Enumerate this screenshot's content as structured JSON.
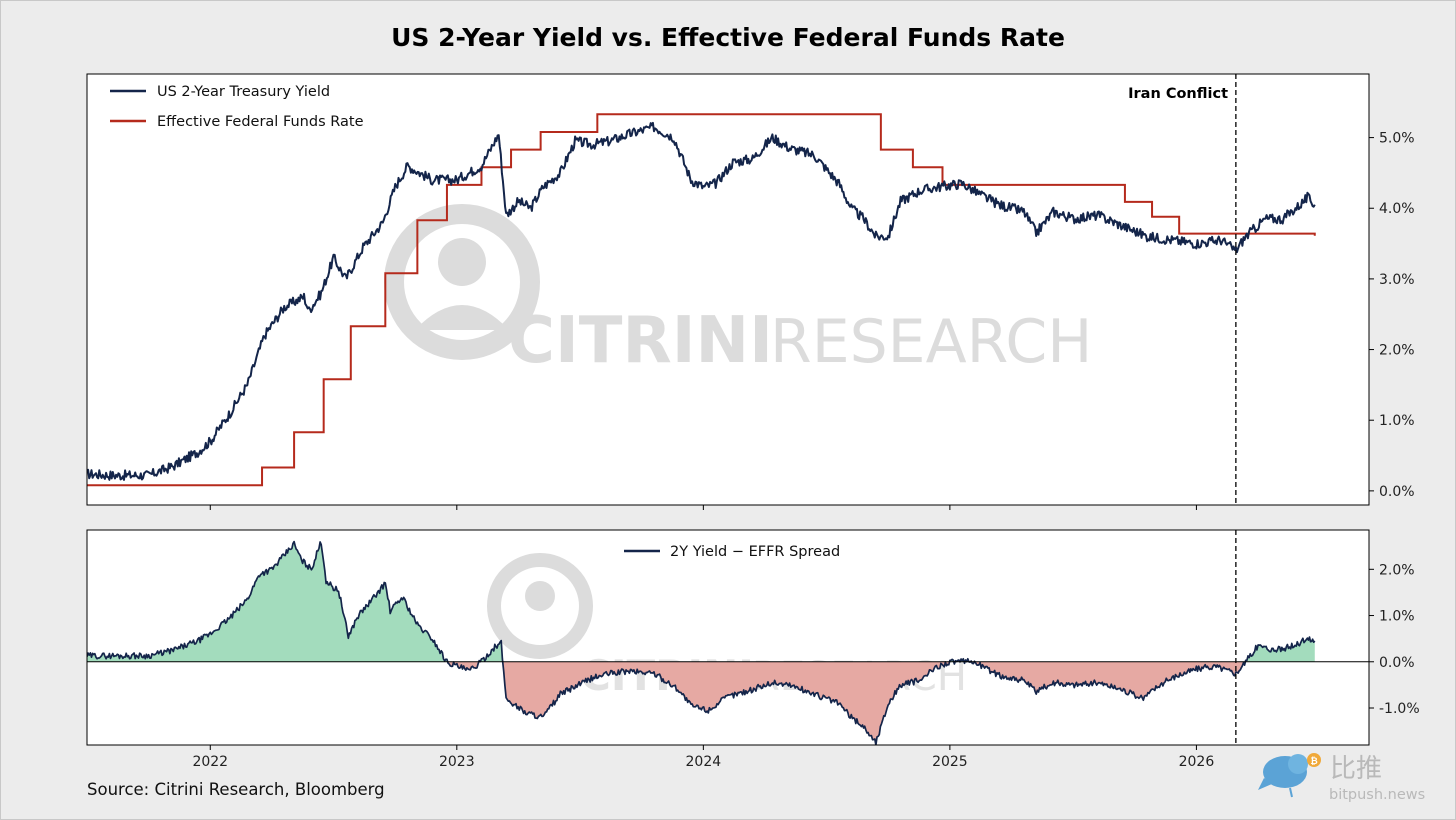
{
  "colors": {
    "yield": "#14254a",
    "effr": "#b52a1c",
    "spread_line": "#14254a",
    "spread_pos": "#a3dcbd",
    "spread_neg": "#e6a9a3",
    "watermark": "#d6d6d6",
    "brand_blue": "#5ba3d6",
    "brand_gold": "#f0a93a"
  },
  "source_text": "Source: Citrini Research, Bloomberg",
  "watermark": {
    "text_bold": "CITRINI",
    "text_light": "RESEARCH"
  },
  "branding": {
    "cn": "比推",
    "site": "bitpush.news",
    "icon": "bird-icon"
  },
  "chart_data": [
    {
      "type": "line",
      "title": "US 2-Year Yield vs. Effective Federal Funds Rate",
      "xlabel": "",
      "ylabel": "",
      "x_ticks": [
        "2022",
        "2023",
        "2024",
        "2025",
        "2026"
      ],
      "xlim": [
        2021.5,
        2026.7
      ],
      "ylim": [
        -0.2,
        5.9
      ],
      "y_ticks": [
        "0.0%",
        "1.0%",
        "2.0%",
        "3.0%",
        "4.0%",
        "5.0%"
      ],
      "y_tick_values": [
        0,
        1,
        2,
        3,
        4,
        5
      ],
      "legend_position": "top-left",
      "annotation": {
        "text": "Iran Conflict",
        "x": 2026.16
      },
      "series": [
        {
          "name": "US 2-Year Treasury Yield",
          "points": [
            [
              2021.5,
              0.24
            ],
            [
              2021.6,
              0.22
            ],
            [
              2021.75,
              0.22
            ],
            [
              2021.85,
              0.35
            ],
            [
              2021.95,
              0.55
            ],
            [
              2022.0,
              0.7
            ],
            [
              2022.08,
              1.1
            ],
            [
              2022.15,
              1.5
            ],
            [
              2022.22,
              2.2
            ],
            [
              2022.3,
              2.6
            ],
            [
              2022.38,
              2.75
            ],
            [
              2022.4,
              2.55
            ],
            [
              2022.45,
              2.8
            ],
            [
              2022.5,
              3.3
            ],
            [
              2022.55,
              3.0
            ],
            [
              2022.62,
              3.45
            ],
            [
              2022.7,
              3.8
            ],
            [
              2022.75,
              4.3
            ],
            [
              2022.8,
              4.6
            ],
            [
              2022.85,
              4.5
            ],
            [
              2022.9,
              4.4
            ],
            [
              2023.0,
              4.4
            ],
            [
              2023.1,
              4.6
            ],
            [
              2023.17,
              5.05
            ],
            [
              2023.2,
              3.9
            ],
            [
              2023.25,
              4.1
            ],
            [
              2023.3,
              4.0
            ],
            [
              2023.35,
              4.3
            ],
            [
              2023.42,
              4.5
            ],
            [
              2023.48,
              4.95
            ],
            [
              2023.55,
              4.9
            ],
            [
              2023.62,
              4.95
            ],
            [
              2023.7,
              5.05
            ],
            [
              2023.8,
              5.15
            ],
            [
              2023.88,
              5.0
            ],
            [
              2023.95,
              4.4
            ],
            [
              2024.0,
              4.3
            ],
            [
              2024.05,
              4.35
            ],
            [
              2024.12,
              4.65
            ],
            [
              2024.2,
              4.7
            ],
            [
              2024.28,
              5.0
            ],
            [
              2024.35,
              4.85
            ],
            [
              2024.45,
              4.75
            ],
            [
              2024.55,
              4.35
            ],
            [
              2024.6,
              4.0
            ],
            [
              2024.65,
              3.85
            ],
            [
              2024.7,
              3.6
            ],
            [
              2024.75,
              3.6
            ],
            [
              2024.8,
              4.1
            ],
            [
              2024.88,
              4.25
            ],
            [
              2024.95,
              4.3
            ],
            [
              2025.05,
              4.35
            ],
            [
              2025.12,
              4.2
            ],
            [
              2025.2,
              4.05
            ],
            [
              2025.3,
              3.95
            ],
            [
              2025.35,
              3.65
            ],
            [
              2025.42,
              3.95
            ],
            [
              2025.5,
              3.85
            ],
            [
              2025.6,
              3.9
            ],
            [
              2025.7,
              3.75
            ],
            [
              2025.8,
              3.6
            ],
            [
              2025.9,
              3.55
            ],
            [
              2026.0,
              3.5
            ],
            [
              2026.1,
              3.55
            ],
            [
              2026.16,
              3.4
            ],
            [
              2026.2,
              3.6
            ],
            [
              2026.28,
              3.85
            ],
            [
              2026.35,
              3.85
            ],
            [
              2026.42,
              4.05
            ],
            [
              2026.45,
              4.15
            ],
            [
              2026.48,
              4.05
            ]
          ]
        },
        {
          "name": "Effective Federal Funds Rate",
          "steps": [
            [
              2021.5,
              0.08
            ],
            [
              2022.21,
              0.33
            ],
            [
              2022.34,
              0.83
            ],
            [
              2022.46,
              1.58
            ],
            [
              2022.57,
              2.33
            ],
            [
              2022.71,
              3.08
            ],
            [
              2022.84,
              3.83
            ],
            [
              2022.96,
              4.33
            ],
            [
              2023.1,
              4.58
            ],
            [
              2023.22,
              4.83
            ],
            [
              2023.34,
              5.08
            ],
            [
              2023.57,
              5.33
            ],
            [
              2024.72,
              4.83
            ],
            [
              2024.85,
              4.58
            ],
            [
              2024.97,
              4.33
            ],
            [
              2025.71,
              4.09
            ],
            [
              2025.82,
              3.88
            ],
            [
              2025.93,
              3.64
            ],
            [
              2026.48,
              3.61
            ]
          ]
        }
      ]
    },
    {
      "type": "area",
      "title": "",
      "xlabel": "",
      "ylabel": "",
      "xlim": [
        2021.5,
        2026.7
      ],
      "ylim": [
        -1.8,
        2.85
      ],
      "y_ticks": [
        "2.0%",
        "1.0%",
        "0.0%",
        "-1.0%"
      ],
      "y_tick_values": [
        2,
        1,
        0,
        -1
      ],
      "legend_position": "top-center",
      "series": [
        {
          "name": "2Y Yield − EFFR Spread",
          "points": [
            [
              2021.5,
              0.13
            ],
            [
              2021.75,
              0.13
            ],
            [
              2021.85,
              0.25
            ],
            [
              2021.95,
              0.45
            ],
            [
              2022.0,
              0.6
            ],
            [
              2022.08,
              0.95
            ],
            [
              2022.15,
              1.35
            ],
            [
              2022.2,
              1.9
            ],
            [
              2022.25,
              2.0
            ],
            [
              2022.3,
              2.3
            ],
            [
              2022.34,
              2.55
            ],
            [
              2022.37,
              2.2
            ],
            [
              2022.41,
              2.0
            ],
            [
              2022.45,
              2.6
            ],
            [
              2022.47,
              1.75
            ],
            [
              2022.5,
              1.6
            ],
            [
              2022.52,
              1.55
            ],
            [
              2022.56,
              0.55
            ],
            [
              2022.6,
              1.0
            ],
            [
              2022.65,
              1.3
            ],
            [
              2022.71,
              1.7
            ],
            [
              2022.73,
              1.1
            ],
            [
              2022.78,
              1.4
            ],
            [
              2022.84,
              0.8
            ],
            [
              2022.9,
              0.5
            ],
            [
              2022.96,
              0.0
            ],
            [
              2023.05,
              -0.2
            ],
            [
              2023.1,
              0.0
            ],
            [
              2023.15,
              0.3
            ],
            [
              2023.18,
              0.4
            ],
            [
              2023.2,
              -0.8
            ],
            [
              2023.28,
              -1.1
            ],
            [
              2023.35,
              -1.2
            ],
            [
              2023.42,
              -0.7
            ],
            [
              2023.55,
              -0.35
            ],
            [
              2023.62,
              -0.25
            ],
            [
              2023.7,
              -0.2
            ],
            [
              2023.8,
              -0.25
            ],
            [
              2023.9,
              -0.6
            ],
            [
              2023.95,
              -0.95
            ],
            [
              2024.02,
              -1.05
            ],
            [
              2024.1,
              -0.75
            ],
            [
              2024.2,
              -0.6
            ],
            [
              2024.28,
              -0.45
            ],
            [
              2024.35,
              -0.5
            ],
            [
              2024.45,
              -0.7
            ],
            [
              2024.55,
              -0.9
            ],
            [
              2024.6,
              -1.2
            ],
            [
              2024.65,
              -1.4
            ],
            [
              2024.7,
              -1.75
            ],
            [
              2024.75,
              -0.9
            ],
            [
              2024.8,
              -0.5
            ],
            [
              2024.88,
              -0.4
            ],
            [
              2024.95,
              -0.1
            ],
            [
              2025.0,
              0.0
            ],
            [
              2025.1,
              0.0
            ],
            [
              2025.2,
              -0.3
            ],
            [
              2025.3,
              -0.4
            ],
            [
              2025.35,
              -0.65
            ],
            [
              2025.42,
              -0.45
            ],
            [
              2025.5,
              -0.5
            ],
            [
              2025.6,
              -0.45
            ],
            [
              2025.7,
              -0.6
            ],
            [
              2025.78,
              -0.8
            ],
            [
              2025.85,
              -0.5
            ],
            [
              2025.92,
              -0.3
            ],
            [
              2026.0,
              -0.15
            ],
            [
              2026.08,
              -0.1
            ],
            [
              2026.16,
              -0.25
            ],
            [
              2026.2,
              0.0
            ],
            [
              2026.25,
              0.35
            ],
            [
              2026.32,
              0.25
            ],
            [
              2026.4,
              0.35
            ],
            [
              2026.45,
              0.5
            ],
            [
              2026.48,
              0.45
            ]
          ]
        }
      ]
    }
  ]
}
